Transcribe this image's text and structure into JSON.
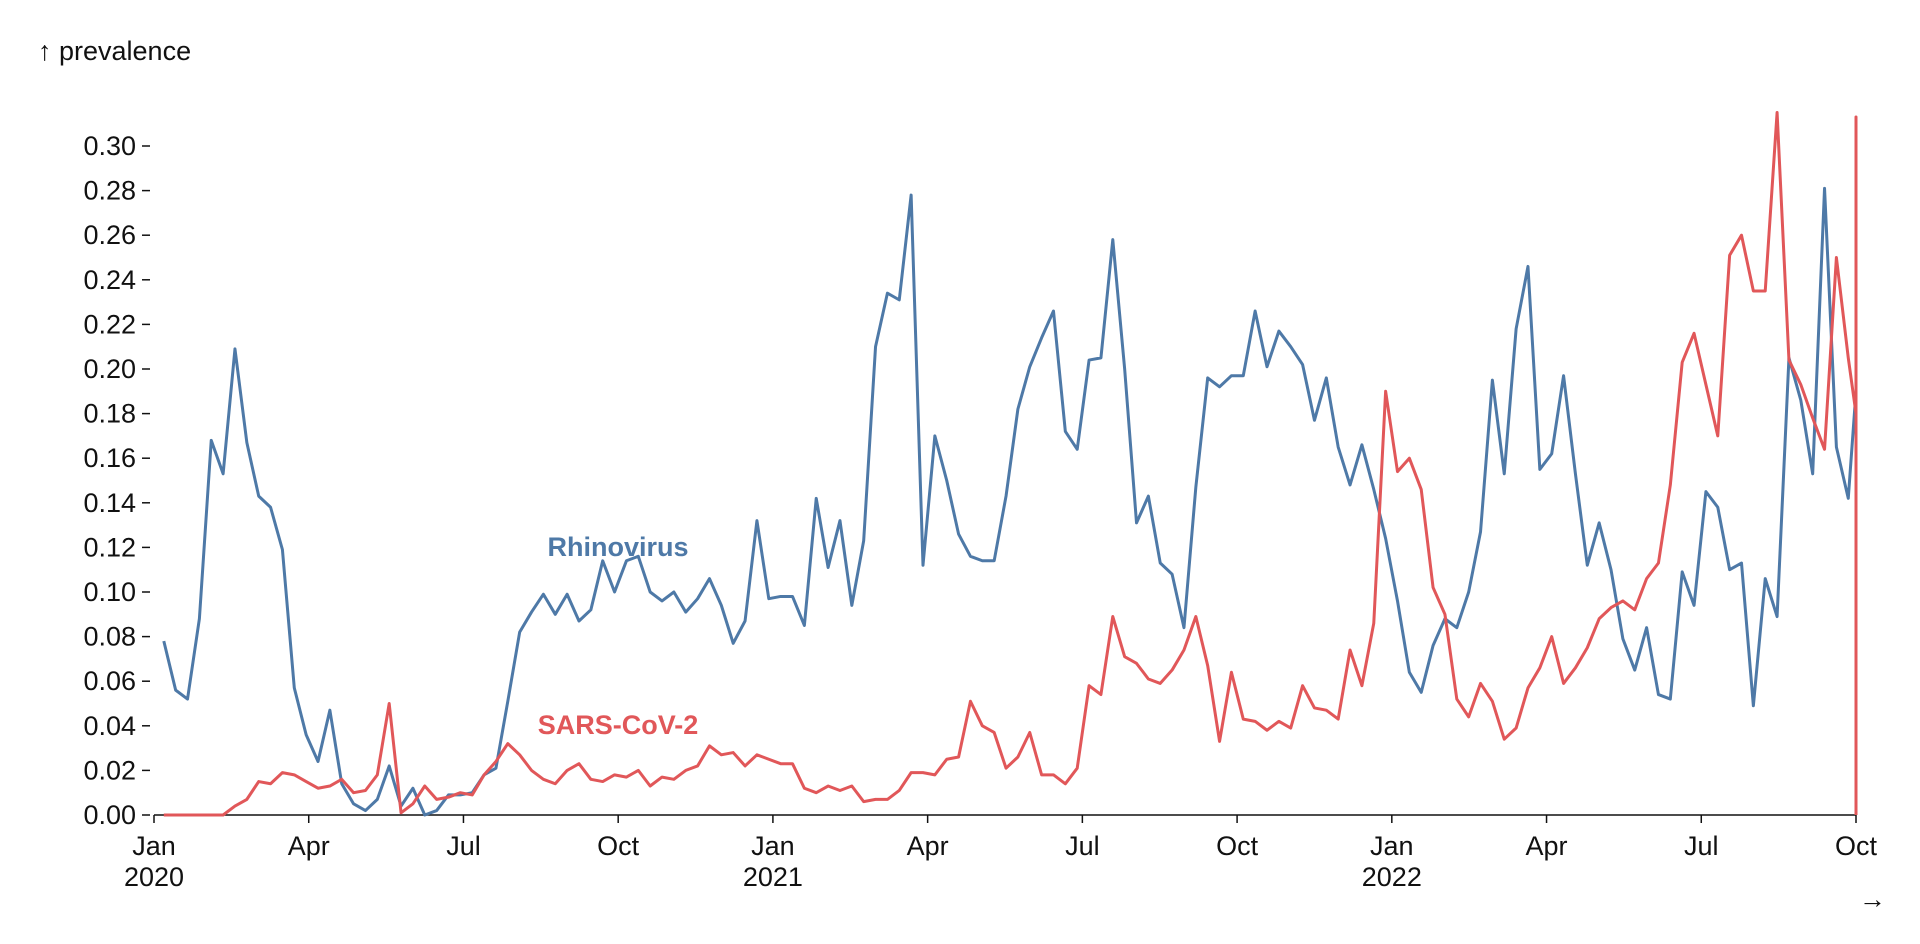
{
  "chart_data": {
    "type": "line",
    "y_label": "↑ prevalence",
    "x_label": "→",
    "xlim": [
      0,
      33
    ],
    "xticks": [
      {
        "value": 0,
        "label": "Jan 2020"
      },
      {
        "value": 3,
        "label": "Apr"
      },
      {
        "value": 6,
        "label": "Jul"
      },
      {
        "value": 9,
        "label": "Oct"
      },
      {
        "value": 12,
        "label": "Jan 2021"
      },
      {
        "value": 15,
        "label": "Apr"
      },
      {
        "value": 18,
        "label": "Jul"
      },
      {
        "value": 21,
        "label": "Oct"
      },
      {
        "value": 24,
        "label": "Jan 2022"
      },
      {
        "value": 27,
        "label": "Apr"
      },
      {
        "value": 30,
        "label": "Jul"
      },
      {
        "value": 33,
        "label": "Oct"
      }
    ],
    "ylim": [
      0,
      0.3
    ],
    "yticks": [
      {
        "value": 0,
        "label": "0.00"
      },
      0.02,
      0.04,
      0.06,
      0.08,
      {
        "value": 0.1,
        "label": "0.10"
      },
      0.12,
      0.14,
      0.16,
      0.18,
      {
        "value": 0.2,
        "label": "0.20"
      },
      0.22,
      0.24,
      0.26,
      0.28,
      {
        "value": 0.3,
        "label": "0.30"
      }
    ],
    "series": [
      {
        "name": "Rhinovirus",
        "color": "#4e79a7",
        "x": [
          0.19,
          0.42,
          0.65,
          0.88,
          1.11,
          1.34,
          1.57,
          1.8,
          2.03,
          2.26,
          2.49,
          2.72,
          2.95,
          3.18,
          3.41,
          3.64,
          3.87,
          4.1,
          4.33,
          4.56,
          4.79,
          5.02,
          5.25,
          5.48,
          5.71,
          5.94,
          6.17,
          6.4,
          6.63,
          6.86,
          7.09,
          7.32,
          7.55,
          7.78,
          8.01,
          8.24,
          8.47,
          8.7,
          8.93,
          9.16,
          9.39,
          9.62,
          9.85,
          10.08,
          10.31,
          10.54,
          10.77,
          11,
          11.23,
          11.46,
          11.69,
          11.92,
          12.15,
          12.38,
          12.61,
          12.84,
          13.07,
          13.3,
          13.53,
          13.76,
          13.99,
          14.22,
          14.45,
          14.68,
          14.91,
          15.14,
          15.37,
          15.6,
          15.83,
          16.06,
          16.29,
          16.52,
          16.75,
          16.98,
          17.21,
          17.44,
          17.67,
          17.9,
          18.13,
          18.36,
          18.59,
          18.82,
          19.05,
          19.28,
          19.51,
          19.74,
          19.97,
          20.2,
          20.43,
          20.66,
          20.89,
          21.12,
          21.35,
          21.58,
          21.81,
          22.04,
          22.27,
          22.5,
          22.73,
          22.96,
          23.19,
          23.42,
          23.65,
          23.88,
          24.11,
          24.34,
          24.57,
          24.8,
          25.03,
          25.26,
          25.49,
          25.72,
          25.95,
          26.18,
          26.41,
          26.64,
          26.87,
          27.1,
          27.33,
          27.56,
          27.79,
          28.02,
          28.25,
          28.48,
          28.71,
          28.94,
          29.17,
          29.4,
          29.63,
          29.86,
          30.09,
          30.32,
          30.55,
          30.78,
          31.01,
          31.24,
          31.47,
          31.7,
          31.93,
          32.16,
          32.39,
          32.62,
          32.85,
          33,
          33
        ],
        "values": [
          0.078,
          0.056,
          0.052,
          0.088,
          0.168,
          0.153,
          0.209,
          0.167,
          0.143,
          0.138,
          0.119,
          0.057,
          0.036,
          0.024,
          0.047,
          0.014,
          0.005,
          0.002,
          0.007,
          0.022,
          0.004,
          0.012,
          0.0,
          0.002,
          0.009,
          0.009,
          0.01,
          0.018,
          0.021,
          0.051,
          0.082,
          0.091,
          0.099,
          0.09,
          0.099,
          0.087,
          0.092,
          0.114,
          0.1,
          0.114,
          0.116,
          0.1,
          0.096,
          0.1,
          0.091,
          0.097,
          0.106,
          0.094,
          0.077,
          0.087,
          0.132,
          0.097,
          0.098,
          0.098,
          0.085,
          0.142,
          0.111,
          0.132,
          0.094,
          0.123,
          0.21,
          0.234,
          0.231,
          0.278,
          0.112,
          0.17,
          0.15,
          0.126,
          0.116,
          0.114,
          0.114,
          0.143,
          0.182,
          0.201,
          0.214,
          0.226,
          0.172,
          0.164,
          0.204,
          0.205,
          0.258,
          0.2,
          0.131,
          0.143,
          0.113,
          0.108,
          0.084,
          0.147,
          0.196,
          0.192,
          0.197,
          0.197,
          0.226,
          0.201,
          0.217,
          0.21,
          0.202,
          0.177,
          0.196,
          0.165,
          0.148,
          0.166,
          0.146,
          0.124,
          0.096,
          0.064,
          0.055,
          0.076,
          0.088,
          0.084,
          0.1,
          0.127,
          0.195,
          0.153,
          0.218,
          0.246,
          0.155,
          0.162,
          0.197,
          0.153,
          0.112,
          0.131,
          0.11,
          0.079,
          0.065,
          0.084,
          0.054,
          0.052,
          0.109,
          0.094,
          0.145,
          0.138,
          0.11,
          0.113,
          0.049,
          0.106,
          0.089,
          0.205,
          0.186,
          0.153,
          0.281,
          0.165,
          0.142,
          0.19,
          0.004
        ]
      },
      {
        "name": "SARS-CoV-2",
        "color": "#e15759",
        "x": [
          0.19,
          0.42,
          0.65,
          0.88,
          1.11,
          1.34,
          1.57,
          1.8,
          2.03,
          2.26,
          2.49,
          2.72,
          2.95,
          3.18,
          3.41,
          3.64,
          3.87,
          4.1,
          4.33,
          4.56,
          4.79,
          5.02,
          5.25,
          5.48,
          5.71,
          5.94,
          6.17,
          6.4,
          6.63,
          6.86,
          7.09,
          7.32,
          7.55,
          7.78,
          8.01,
          8.24,
          8.47,
          8.7,
          8.93,
          9.16,
          9.39,
          9.62,
          9.85,
          10.08,
          10.31,
          10.54,
          10.77,
          11,
          11.23,
          11.46,
          11.69,
          11.92,
          12.15,
          12.38,
          12.61,
          12.84,
          13.07,
          13.3,
          13.53,
          13.76,
          13.99,
          14.22,
          14.45,
          14.68,
          14.91,
          15.14,
          15.37,
          15.6,
          15.83,
          16.06,
          16.29,
          16.52,
          16.75,
          16.98,
          17.21,
          17.44,
          17.67,
          17.9,
          18.13,
          18.36,
          18.59,
          18.82,
          19.05,
          19.28,
          19.51,
          19.74,
          19.97,
          20.2,
          20.43,
          20.66,
          20.89,
          21.12,
          21.35,
          21.58,
          21.81,
          22.04,
          22.27,
          22.5,
          22.73,
          22.96,
          23.19,
          23.42,
          23.65,
          23.88,
          24.11,
          24.34,
          24.57,
          24.8,
          25.03,
          25.26,
          25.49,
          25.72,
          25.95,
          26.18,
          26.41,
          26.64,
          26.87,
          27.1,
          27.33,
          27.56,
          27.79,
          28.02,
          28.25,
          28.48,
          28.71,
          28.94,
          29.17,
          29.4,
          29.63,
          29.86,
          30.09,
          30.32,
          30.55,
          30.78,
          31.01,
          31.24,
          31.47,
          31.7,
          31.93,
          32.16,
          32.39,
          32.62,
          32.85,
          33,
          33,
          33
        ],
        "values": [
          0,
          0,
          0,
          0,
          0,
          0,
          0.004,
          0.007,
          0.015,
          0.014,
          0.019,
          0.018,
          0.015,
          0.012,
          0.013,
          0.016,
          0.01,
          0.011,
          0.018,
          0.05,
          0.001,
          0.005,
          0.013,
          0.007,
          0.008,
          0.01,
          0.009,
          0.018,
          0.024,
          0.032,
          0.027,
          0.02,
          0.016,
          0.014,
          0.02,
          0.023,
          0.016,
          0.015,
          0.018,
          0.017,
          0.02,
          0.013,
          0.017,
          0.016,
          0.02,
          0.022,
          0.031,
          0.027,
          0.028,
          0.022,
          0.027,
          0.025,
          0.023,
          0.023,
          0.012,
          0.01,
          0.013,
          0.011,
          0.013,
          0.006,
          0.007,
          0.007,
          0.011,
          0.019,
          0.019,
          0.018,
          0.025,
          0.026,
          0.051,
          0.04,
          0.037,
          0.021,
          0.026,
          0.037,
          0.018,
          0.018,
          0.014,
          0.021,
          0.058,
          0.054,
          0.089,
          0.071,
          0.068,
          0.061,
          0.059,
          0.065,
          0.074,
          0.089,
          0.067,
          0.033,
          0.064,
          0.043,
          0.042,
          0.038,
          0.042,
          0.039,
          0.058,
          0.048,
          0.047,
          0.043,
          0.074,
          0.058,
          0.086,
          0.19,
          0.154,
          0.16,
          0.146,
          0.102,
          0.09,
          0.052,
          0.044,
          0.059,
          0.051,
          0.034,
          0.039,
          0.057,
          0.066,
          0.08,
          0.059,
          0.066,
          0.075,
          0.088,
          0.093,
          0.096,
          0.092,
          0.106,
          0.113,
          0.148,
          0.203,
          0.216,
          0.193,
          0.17,
          0.251,
          0.26,
          0.235,
          0.235,
          0.315,
          0.204,
          0.193,
          0.178,
          0.164,
          0.25,
          0.205,
          0.18,
          0.313,
          0
        ]
      }
    ]
  }
}
